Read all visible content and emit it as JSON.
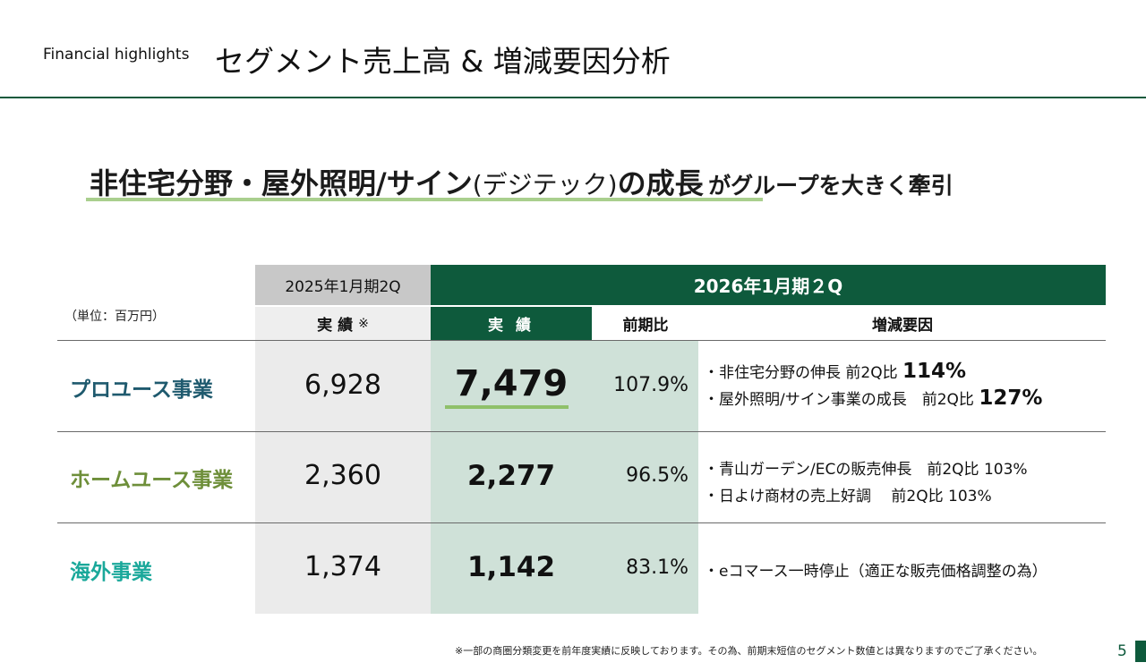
{
  "header": {
    "subtitle": "Financial highlights",
    "title": "セグメント売上高 & 増減要因分析"
  },
  "headline": {
    "part1": "非住宅分野・屋外照明/サイン",
    "part2": "(デジテック)",
    "part3": "の成長",
    "part4": "がグループを大きく牽引"
  },
  "table": {
    "unit": "（単位：百万円）",
    "prev_period": "2025年1月期2Q",
    "cur_period": "2026年1月期２Q",
    "col_prev_actual": "実 績",
    "col_prev_note": "※",
    "col_cur_actual": "実 績",
    "col_yoy": "前期比",
    "col_factors": "増減要因",
    "rows": [
      {
        "name": "プロユース事業",
        "color": "#1f5a6e",
        "prev": "6,928",
        "cur": "7,479",
        "yoy": "107.9%",
        "factors": [
          {
            "text": "・非住宅分野の伸長 前2Q比 ",
            "emph": "114%"
          },
          {
            "text": "・屋外照明/サイン事業の成長　前2Q比 ",
            "emph": "127%"
          }
        ]
      },
      {
        "name": "ホームユース事業",
        "color": "#6e8f3a",
        "prev": "2,360",
        "cur": "2,277",
        "yoy": "96.5%",
        "factors": [
          {
            "text": "・青山ガーデン/ECの販売伸長　前2Q比 103%"
          },
          {
            "text": "・日よけ商材の売上好調　 前2Q比 103%"
          }
        ]
      },
      {
        "name": "海外事業",
        "color": "#1aa89a",
        "prev": "1,374",
        "cur": "1,142",
        "yoy": "83.1%",
        "factors": [
          {
            "text": "・eコマース一時停止（適正な販売価格調整の為）"
          }
        ]
      }
    ]
  },
  "footnote": "※一部の商圏分類変更を前年度実績に反映しております。その為、前期末短信のセグメント数値とは異なりますのでご了承ください。",
  "page_number": "5"
}
